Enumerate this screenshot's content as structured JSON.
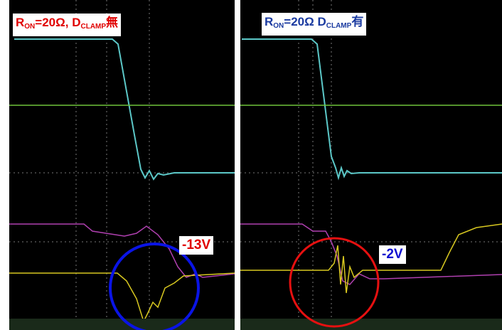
{
  "panels": [
    {
      "label": {
        "r": "R",
        "r_sub": "ON",
        "mid": "=20Ω, D",
        "d_sub": "CLAMP",
        "tail": "無"
      },
      "annotation": "-13V"
    },
    {
      "label": {
        "r": "R",
        "r_sub": "ON",
        "mid": "=20Ω D",
        "d_sub": "CLAMP",
        "tail": "有"
      },
      "annotation": "-2V"
    }
  ]
}
